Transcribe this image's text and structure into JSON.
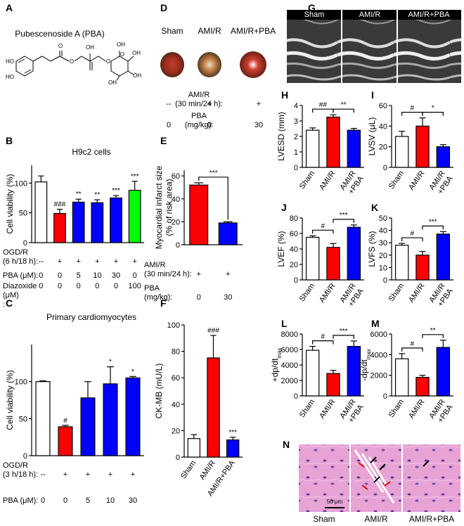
{
  "panel_a": {
    "label": "A",
    "title": "Pubescenoside A (PBA)",
    "atoms": [
      "HO",
      "HO",
      "O",
      "O",
      "OH",
      "O",
      "O",
      "OH",
      "OH",
      "OH",
      "OH"
    ]
  },
  "panel_d": {
    "label": "D",
    "images": [
      "Sham",
      "AMI/R",
      "AMI/R+PBA"
    ],
    "conditions": [
      {
        "label": "AMI/R\n(30 min/24 h):",
        "values": [
          "--",
          "+",
          "+"
        ]
      },
      {
        "label": "PBA\n(mg/kg):",
        "values": [
          "0",
          "0",
          "30"
        ]
      }
    ]
  },
  "panel_g": {
    "label": "G",
    "images": [
      "Sham",
      "AMI/R",
      "AMI/R+PBA"
    ]
  },
  "panel_n": {
    "label": "N",
    "images": [
      "Sham",
      "AMI/R",
      "AMI/R+PBA"
    ],
    "scale_bar": "50 μm"
  },
  "chart_data": [
    {
      "type": "bar",
      "panel": "B",
      "title": "H9c2 cells",
      "ylabel": "Cell viability (%)",
      "values": [
        102,
        49,
        68,
        67,
        75,
        88
      ],
      "errors": [
        10,
        7,
        5,
        5,
        4,
        15
      ],
      "colors": [
        "#ffffff",
        "#ff0000",
        "#0000ff",
        "#0000ff",
        "#0000ff",
        "#00ff00"
      ],
      "annotations": [
        "",
        "###",
        "**",
        "**",
        "***",
        "***"
      ],
      "ylim": [
        0,
        130
      ],
      "yticks": [
        0,
        50,
        100
      ],
      "conditions": [
        {
          "label": "OGD/R\n(6 h/18 h):",
          "values": [
            "--",
            "+",
            "+",
            "+",
            "+",
            "+"
          ]
        },
        {
          "label": "PBA (μM):",
          "values": [
            "0",
            "0",
            "5",
            "10",
            "30",
            "0"
          ]
        },
        {
          "label": "Diazoxide\n(μM)\n:",
          "values": [
            "0",
            "0",
            "0",
            "0",
            "0",
            "100"
          ]
        }
      ]
    },
    {
      "type": "bar",
      "panel": "C",
      "title": "Primary cardiomyocytes",
      "ylabel": "Cell viability (%)",
      "values": [
        100,
        39,
        78,
        97,
        105
      ],
      "errors": [
        1,
        2,
        22,
        23,
        2
      ],
      "colors": [
        "#ffffff",
        "#ff0000",
        "#0000ff",
        "#0000ff",
        "#0000ff"
      ],
      "annotations": [
        "",
        "#",
        "",
        "*",
        "*"
      ],
      "ylim": [
        0,
        150
      ],
      "yticks": [
        0,
        50,
        100
      ],
      "conditions": [
        {
          "label": "OGD/R\n(3 h/18 h):",
          "values": [
            "--",
            "+",
            "+",
            "+",
            "+"
          ]
        },
        {
          "label": "PBA (μM):",
          "values": [
            "0",
            "0",
            "5",
            "10",
            "30"
          ]
        }
      ]
    },
    {
      "type": "bar",
      "panel": "E",
      "ylabel": "Myocardial infarct size\n(% of risk area)",
      "values": [
        52,
        19
      ],
      "errors": [
        2,
        1
      ],
      "colors": [
        "#ff0000",
        "#0000ff"
      ],
      "brackets": [
        "***"
      ],
      "ylim": [
        0,
        65
      ],
      "yticks": [
        0,
        20,
        40,
        60
      ],
      "conditions": [
        {
          "label": "AMI/R\n(30 min/24 h):",
          "values": [
            "+",
            "+"
          ]
        },
        {
          "label": "PBA\n(mg/kg):",
          "values": [
            "0",
            "30"
          ]
        }
      ]
    },
    {
      "type": "bar",
      "panel": "F",
      "ylabel": "CK-MB (mU/L)",
      "categories": [
        "Sham",
        "AMI/R",
        "AMI/R+PBA"
      ],
      "values": [
        14,
        75,
        13
      ],
      "errors": [
        3,
        17,
        2
      ],
      "colors": [
        "#ffffff",
        "#ff0000",
        "#0000ff"
      ],
      "annotations": [
        "",
        "###",
        "***"
      ],
      "ylim": [
        0,
        100
      ],
      "yticks": [
        0,
        20,
        40,
        60,
        80,
        100
      ]
    },
    {
      "type": "bar",
      "panel": "H",
      "ylabel": "LVESD (mm)",
      "categories": [
        "Sham",
        "AMI/R",
        "AMI/R\n+PBA"
      ],
      "values": [
        2.4,
        3.25,
        2.4
      ],
      "errors": [
        0.15,
        0.15,
        0.12
      ],
      "colors": [
        "#ffffff",
        "#ff0000",
        "#0000ff"
      ],
      "brackets": [
        "##",
        "**"
      ],
      "ylim": [
        0,
        4
      ],
      "yticks": [
        0,
        1,
        2,
        3,
        4
      ]
    },
    {
      "type": "bar",
      "panel": "I",
      "ylabel": "LVSV (μL)",
      "categories": [
        "Sham",
        "AMI/R",
        "AMI/R\n+PBA"
      ],
      "values": [
        30,
        40,
        20
      ],
      "errors": [
        5,
        8,
        2
      ],
      "colors": [
        "#ffffff",
        "#ff0000",
        "#0000ff"
      ],
      "brackets": [
        "#",
        "*"
      ],
      "ylim": [
        0,
        60
      ],
      "yticks": [
        0,
        20,
        40,
        60
      ]
    },
    {
      "type": "bar",
      "panel": "J",
      "ylabel": "LVEF (%)",
      "categories": [
        "Sham",
        "AMI/R",
        "AMI/R\n+PBA"
      ],
      "values": [
        55,
        42,
        68
      ],
      "errors": [
        2,
        5,
        3
      ],
      "colors": [
        "#ffffff",
        "#ff0000",
        "#0000ff"
      ],
      "brackets": [
        "#",
        "***"
      ],
      "ylim": [
        0,
        80
      ],
      "yticks": [
        0,
        20,
        40,
        60,
        80
      ]
    },
    {
      "type": "bar",
      "panel": "K",
      "ylabel": "LVFS (%)",
      "categories": [
        "Sham",
        "AMI/R",
        "AMI/R\n+PBA"
      ],
      "values": [
        28,
        20,
        37
      ],
      "errors": [
        1.5,
        3,
        2
      ],
      "colors": [
        "#ffffff",
        "#ff0000",
        "#0000ff"
      ],
      "brackets": [
        "#",
        "***"
      ],
      "ylim": [
        0,
        50
      ],
      "yticks": [
        0,
        10,
        20,
        30,
        40,
        50
      ]
    },
    {
      "type": "bar",
      "panel": "L",
      "ylabel": "+dp/dt",
      "ylabel_sub": "max",
      "categories": [
        "Sham",
        "AMI/R",
        "AMI/R\n+PBA"
      ],
      "values": [
        5900,
        2900,
        6400
      ],
      "errors": [
        500,
        400,
        700
      ],
      "colors": [
        "#ffffff",
        "#ff0000",
        "#0000ff"
      ],
      "brackets": [
        "#",
        "***"
      ],
      "ylim": [
        0,
        8000
      ],
      "yticks": [
        0,
        2000,
        4000,
        6000,
        8000
      ]
    },
    {
      "type": "bar",
      "panel": "M",
      "ylabel": "-dp/dt",
      "ylabel_sub": "max",
      "categories": [
        "Sham",
        "AMI/R",
        "AMI/R\n+PBA"
      ],
      "values": [
        3600,
        1800,
        4700
      ],
      "errors": [
        500,
        200,
        700
      ],
      "colors": [
        "#ffffff",
        "#ff0000",
        "#0000ff"
      ],
      "brackets": [
        "#",
        "**"
      ],
      "ylim": [
        0,
        6000
      ],
      "yticks": [
        0,
        2000,
        4000,
        6000
      ]
    }
  ]
}
